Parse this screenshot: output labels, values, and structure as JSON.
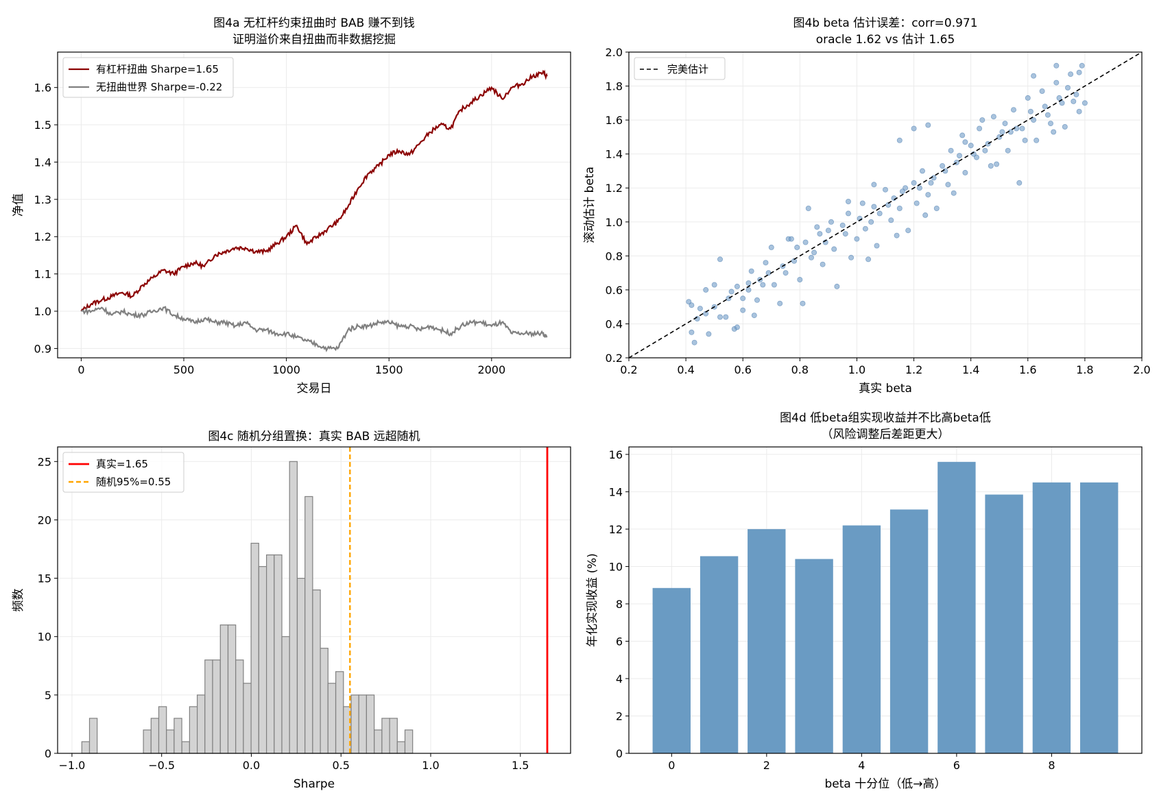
{
  "chart_data": [
    {
      "id": "a",
      "type": "line",
      "title": [
        "图4a  无杠杆约束扭曲时 BAB 赚不到钱",
        "证明溢价来自扭曲而非数据挖掘"
      ],
      "xlabel": "交易日",
      "ylabel": "净值",
      "xlim": [
        -115,
        2385
      ],
      "ylim": [
        0.875,
        1.695
      ],
      "xticks": [
        0,
        500,
        1000,
        1500,
        2000
      ],
      "xtick_labels": [
        "0",
        "500",
        "1000",
        "1500",
        "2000"
      ],
      "yticks": [
        0.9,
        1.0,
        1.1,
        1.2,
        1.3,
        1.4,
        1.5,
        1.6
      ],
      "ytick_labels": [
        "0.9",
        "1.0",
        "1.1",
        "1.2",
        "1.3",
        "1.4",
        "1.5",
        "1.6"
      ],
      "grid": true,
      "legend": "top-left",
      "series": [
        {
          "name": "有杠杆扭曲 Sharpe=1.65",
          "color": "#8b0000",
          "x": [
            0,
            50,
            100,
            150,
            200,
            250,
            300,
            350,
            400,
            450,
            500,
            550,
            600,
            650,
            700,
            750,
            800,
            850,
            900,
            950,
            1000,
            1050,
            1100,
            1150,
            1200,
            1250,
            1300,
            1350,
            1400,
            1450,
            1500,
            1550,
            1600,
            1650,
            1700,
            1750,
            1800,
            1850,
            1900,
            1950,
            2000,
            2050,
            2100,
            2150,
            2200,
            2250,
            2270
          ],
          "y": [
            1.0,
            1.02,
            1.03,
            1.04,
            1.05,
            1.04,
            1.07,
            1.09,
            1.11,
            1.1,
            1.12,
            1.13,
            1.12,
            1.15,
            1.16,
            1.17,
            1.17,
            1.16,
            1.16,
            1.18,
            1.2,
            1.23,
            1.18,
            1.2,
            1.22,
            1.24,
            1.28,
            1.33,
            1.37,
            1.39,
            1.42,
            1.43,
            1.42,
            1.45,
            1.48,
            1.5,
            1.49,
            1.54,
            1.56,
            1.58,
            1.6,
            1.57,
            1.6,
            1.61,
            1.63,
            1.64,
            1.63
          ]
        },
        {
          "name": "无扭曲世界 Sharpe=-0.22",
          "color": "#808080",
          "x": [
            0,
            50,
            100,
            150,
            200,
            250,
            300,
            350,
            400,
            450,
            500,
            550,
            600,
            650,
            700,
            750,
            800,
            850,
            900,
            950,
            1000,
            1050,
            1100,
            1150,
            1200,
            1250,
            1300,
            1350,
            1400,
            1450,
            1500,
            1550,
            1600,
            1650,
            1700,
            1750,
            1800,
            1850,
            1900,
            1950,
            2000,
            2050,
            2100,
            2150,
            2200,
            2250,
            2270
          ],
          "y": [
            1.0,
            1.0,
            1.01,
            0.99,
            1.0,
            0.99,
            0.99,
            1.0,
            1.01,
            0.99,
            0.98,
            0.97,
            0.98,
            0.97,
            0.97,
            0.96,
            0.97,
            0.95,
            0.95,
            0.94,
            0.94,
            0.93,
            0.92,
            0.91,
            0.9,
            0.9,
            0.95,
            0.96,
            0.96,
            0.97,
            0.97,
            0.96,
            0.96,
            0.95,
            0.96,
            0.95,
            0.94,
            0.96,
            0.97,
            0.97,
            0.96,
            0.97,
            0.94,
            0.94,
            0.94,
            0.94,
            0.93
          ]
        }
      ]
    },
    {
      "id": "b",
      "type": "scatter",
      "title": [
        "图4b  beta 估计误差：corr=0.971",
        "oracle 1.62 vs 估计 1.65"
      ],
      "xlabel": "真实 beta",
      "ylabel": "滚动估计 beta",
      "xlim": [
        0.2,
        2.0
      ],
      "ylim": [
        0.2,
        2.0
      ],
      "xticks": [
        0.2,
        0.4,
        0.6,
        0.8,
        1.0,
        1.2,
        1.4,
        1.6,
        1.8,
        2.0
      ],
      "xtick_labels": [
        "0.2",
        "0.4",
        "0.6",
        "0.8",
        "1.0",
        "1.2",
        "1.4",
        "1.6",
        "1.8",
        "2.0"
      ],
      "yticks": [
        0.2,
        0.4,
        0.6,
        0.8,
        1.0,
        1.2,
        1.4,
        1.6,
        1.8,
        2.0
      ],
      "ytick_labels": [
        "0.2",
        "0.4",
        "0.6",
        "0.8",
        "1.0",
        "1.2",
        "1.4",
        "1.6",
        "1.8",
        "2.0"
      ],
      "grid": true,
      "legend": "top-left",
      "reference_line": {
        "name": "完美估计",
        "x": [
          0.2,
          2.0
        ],
        "y": [
          0.2,
          2.0
        ]
      },
      "point_color": "#6f9bc6",
      "points": [
        [
          0.41,
          0.53
        ],
        [
          0.42,
          0.35
        ],
        [
          0.43,
          0.29
        ],
        [
          0.45,
          0.49
        ],
        [
          0.47,
          0.6
        ],
        [
          0.48,
          0.34
        ],
        [
          0.5,
          0.63
        ],
        [
          0.52,
          0.78
        ],
        [
          0.52,
          0.44
        ],
        [
          0.55,
          0.55
        ],
        [
          0.57,
          0.37
        ],
        [
          0.58,
          0.62
        ],
        [
          0.6,
          0.48
        ],
        [
          0.62,
          0.6
        ],
        [
          0.63,
          0.71
        ],
        [
          0.65,
          0.54
        ],
        [
          0.66,
          0.66
        ],
        [
          0.68,
          0.76
        ],
        [
          0.7,
          0.85
        ],
        [
          0.71,
          0.63
        ],
        [
          0.73,
          0.52
        ],
        [
          0.75,
          0.7
        ],
        [
          0.76,
          0.9
        ],
        [
          0.78,
          0.77
        ],
        [
          0.79,
          0.85
        ],
        [
          0.8,
          0.66
        ],
        [
          0.81,
          0.52
        ],
        [
          0.82,
          0.88
        ],
        [
          0.83,
          1.08
        ],
        [
          0.85,
          0.82
        ],
        [
          0.87,
          0.93
        ],
        [
          0.88,
          0.75
        ],
        [
          0.9,
          0.95
        ],
        [
          0.91,
          1.0
        ],
        [
          0.92,
          0.84
        ],
        [
          0.93,
          0.62
        ],
        [
          0.95,
          0.98
        ],
        [
          0.97,
          1.05
        ],
        [
          0.98,
          0.79
        ],
        [
          1.0,
          0.9
        ],
        [
          1.02,
          1.11
        ],
        [
          1.03,
          0.96
        ],
        [
          1.05,
          1.0
        ],
        [
          1.07,
          0.86
        ],
        [
          1.08,
          1.05
        ],
        [
          1.1,
          1.19
        ],
        [
          1.12,
          1.01
        ],
        [
          1.13,
          1.14
        ],
        [
          1.15,
          1.08
        ],
        [
          1.17,
          1.2
        ],
        [
          1.18,
          0.95
        ],
        [
          1.2,
          1.23
        ],
        [
          1.21,
          1.11
        ],
        [
          1.23,
          1.3
        ],
        [
          1.25,
          1.16
        ],
        [
          1.27,
          1.26
        ],
        [
          1.28,
          1.08
        ],
        [
          1.3,
          1.33
        ],
        [
          1.32,
          1.22
        ],
        [
          1.33,
          1.42
        ],
        [
          1.35,
          1.35
        ],
        [
          1.37,
          1.51
        ],
        [
          1.38,
          1.29
        ],
        [
          1.4,
          1.45
        ],
        [
          1.42,
          1.38
        ],
        [
          1.43,
          1.55
        ],
        [
          1.45,
          1.42
        ],
        [
          1.47,
          1.33
        ],
        [
          1.48,
          1.62
        ],
        [
          1.5,
          1.5
        ],
        [
          1.52,
          1.58
        ],
        [
          1.53,
          1.42
        ],
        [
          1.55,
          1.66
        ],
        [
          1.57,
          1.23
        ],
        [
          1.58,
          1.55
        ],
        [
          1.6,
          1.73
        ],
        [
          1.62,
          1.6
        ],
        [
          1.63,
          1.48
        ],
        [
          1.65,
          1.77
        ],
        [
          1.67,
          1.63
        ],
        [
          1.68,
          1.58
        ],
        [
          1.7,
          1.82
        ],
        [
          1.72,
          1.7
        ],
        [
          1.73,
          1.56
        ],
        [
          1.75,
          1.87
        ],
        [
          1.77,
          1.75
        ],
        [
          1.78,
          1.65
        ],
        [
          1.79,
          1.92
        ],
        [
          1.8,
          1.7
        ],
        [
          0.44,
          0.43
        ],
        [
          0.5,
          0.5
        ],
        [
          0.56,
          0.59
        ],
        [
          0.62,
          0.64
        ],
        [
          0.69,
          0.7
        ],
        [
          0.74,
          0.74
        ],
        [
          0.84,
          0.79
        ],
        [
          0.89,
          0.88
        ],
        [
          0.96,
          0.93
        ],
        [
          1.01,
          1.02
        ],
        [
          1.06,
          1.09
        ],
        [
          1.11,
          1.1
        ],
        [
          1.16,
          1.18
        ],
        [
          1.22,
          1.2
        ],
        [
          1.26,
          1.23
        ],
        [
          1.31,
          1.3
        ],
        [
          1.36,
          1.39
        ],
        [
          1.41,
          1.4
        ],
        [
          1.46,
          1.46
        ],
        [
          1.51,
          1.53
        ],
        [
          1.56,
          1.55
        ],
        [
          1.61,
          1.65
        ],
        [
          1.66,
          1.68
        ],
        [
          1.71,
          1.73
        ],
        [
          1.76,
          1.71
        ],
        [
          1.25,
          1.57
        ],
        [
          1.2,
          1.55
        ],
        [
          1.15,
          1.48
        ],
        [
          1.54,
          1.53
        ],
        [
          1.62,
          1.86
        ],
        [
          1.7,
          1.92
        ],
        [
          1.44,
          1.6
        ],
        [
          1.38,
          1.47
        ],
        [
          1.06,
          1.22
        ],
        [
          0.97,
          1.12
        ],
        [
          0.86,
          0.97
        ],
        [
          0.77,
          0.9
        ],
        [
          0.67,
          0.63
        ],
        [
          0.6,
          0.55
        ],
        [
          0.54,
          0.44
        ],
        [
          0.47,
          0.46
        ],
        [
          0.42,
          0.51
        ],
        [
          0.58,
          0.38
        ],
        [
          0.64,
          0.45
        ],
        [
          1.04,
          0.78
        ],
        [
          1.14,
          0.92
        ],
        [
          1.24,
          1.04
        ],
        [
          1.34,
          1.17
        ],
        [
          1.49,
          1.34
        ],
        [
          1.59,
          1.48
        ],
        [
          1.69,
          1.53
        ],
        [
          1.74,
          1.79
        ],
        [
          1.78,
          1.88
        ]
      ]
    },
    {
      "id": "c",
      "type": "bar",
      "subtype": "histogram",
      "title": [
        "图4c  随机分组置换：真实 BAB 远超随机"
      ],
      "xlabel": "Sharpe",
      "ylabel": "频数",
      "xlim": [
        -1.08,
        1.78
      ],
      "ylim": [
        0,
        26.25
      ],
      "xticks": [
        -1.0,
        -0.5,
        0.0,
        0.5,
        1.0,
        1.5
      ],
      "xtick_labels": [
        "−1.0",
        "−0.5",
        "0.0",
        "0.5",
        "1.0",
        "1.5"
      ],
      "yticks": [
        0,
        5,
        10,
        15,
        20,
        25
      ],
      "ytick_labels": [
        "0",
        "5",
        "10",
        "15",
        "20",
        "25"
      ],
      "grid": true,
      "legend": "top-left",
      "bin_start": -0.945,
      "bin_width": 0.0429,
      "counts": [
        1,
        3,
        0,
        0,
        0,
        0,
        0,
        0,
        2,
        3,
        4,
        2,
        3,
        1,
        4,
        5,
        8,
        8,
        11,
        11,
        8,
        6,
        18,
        16,
        17,
        17,
        10,
        25,
        15,
        22,
        14,
        9,
        6,
        7,
        4,
        5,
        5,
        5,
        2,
        3,
        3,
        1,
        2
      ],
      "bar_color": "#d3d3d3",
      "edge_color": "#808080",
      "vlines": [
        {
          "name": "真实=1.65",
          "x": 1.65,
          "color": "#ff0000",
          "style": "solid"
        },
        {
          "name": "随机95%=0.55",
          "x": 0.55,
          "color": "#ffa500",
          "style": "dashed"
        }
      ]
    },
    {
      "id": "d",
      "type": "bar",
      "title": [
        "图4d  低beta组实现收益并不比高beta低",
        "（风险调整后差距更大）"
      ],
      "xlabel": "beta 十分位（低→高）",
      "ylabel": "年化实现收益 (%)",
      "xlim": [
        -0.9,
        9.9
      ],
      "ylim": [
        0,
        16.4
      ],
      "xticks": [
        0,
        2,
        4,
        6,
        8
      ],
      "xtick_labels": [
        "0",
        "2",
        "4",
        "6",
        "8"
      ],
      "yticks": [
        0,
        2,
        4,
        6,
        8,
        10,
        12,
        14,
        16
      ],
      "ytick_labels": [
        "0",
        "2",
        "4",
        "6",
        "8",
        "10",
        "12",
        "14",
        "16"
      ],
      "grid": true,
      "categories": [
        0,
        1,
        2,
        3,
        4,
        5,
        6,
        7,
        8,
        9
      ],
      "values": [
        8.85,
        10.55,
        12.0,
        10.4,
        12.2,
        13.05,
        15.6,
        13.85,
        14.5,
        14.5
      ],
      "bar_color": "#6a9bc3"
    }
  ]
}
